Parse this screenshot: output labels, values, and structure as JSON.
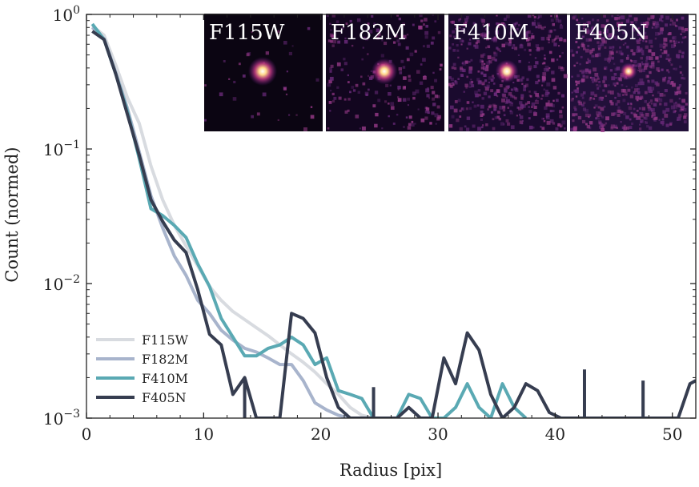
{
  "chart_data": {
    "type": "line",
    "yscale": "log",
    "xlabel": "Radius [pix]",
    "ylabel": "Count (normed)",
    "xlim": [
      0,
      52
    ],
    "ylim": [
      0.001,
      1
    ],
    "x_ticks": [
      0,
      10,
      20,
      30,
      40,
      50
    ],
    "x_tick_labels": [
      "0",
      "10",
      "20",
      "30",
      "40",
      "50"
    ],
    "y_ticks": [
      {
        "value": 1,
        "base": "10",
        "exp": "0"
      },
      {
        "value": 0.1,
        "base": "10",
        "exp": "−1"
      },
      {
        "value": 0.01,
        "base": "10",
        "exp": "−2"
      },
      {
        "value": 0.001,
        "base": "10",
        "exp": "−3"
      }
    ],
    "legend_position": "lower-left",
    "series": [
      {
        "name": "F115W",
        "color": "#d8dbe0",
        "points": [
          [
            0.5,
            0.82
          ],
          [
            1.5,
            0.7
          ],
          [
            2.5,
            0.42
          ],
          [
            3.5,
            0.24
          ],
          [
            4.5,
            0.155
          ],
          [
            5.5,
            0.075
          ],
          [
            6.5,
            0.042
          ],
          [
            7.5,
            0.027
          ],
          [
            8.5,
            0.019
          ],
          [
            9.5,
            0.0135
          ],
          [
            10.5,
            0.0095
          ],
          [
            11.5,
            0.0075
          ],
          [
            12.5,
            0.0062
          ],
          [
            13.5,
            0.0054
          ],
          [
            14.5,
            0.0047
          ],
          [
            15.5,
            0.0041
          ],
          [
            16.5,
            0.0035
          ],
          [
            17.5,
            0.003
          ],
          [
            18.5,
            0.0026
          ],
          [
            19.5,
            0.0022
          ],
          [
            20.5,
            0.0018
          ],
          [
            21.5,
            0.0015
          ],
          [
            22.5,
            0.0012
          ],
          [
            23.5,
            0.00105
          ],
          [
            24.5,
            0.001
          ]
        ]
      },
      {
        "name": "F182M",
        "color": "#a8b4cc",
        "points": [
          [
            0.5,
            0.8
          ],
          [
            1.5,
            0.66
          ],
          [
            2.5,
            0.37
          ],
          [
            3.5,
            0.2
          ],
          [
            4.5,
            0.095
          ],
          [
            5.5,
            0.045
          ],
          [
            6.5,
            0.026
          ],
          [
            7.5,
            0.016
          ],
          [
            8.5,
            0.0115
          ],
          [
            9.5,
            0.0075
          ],
          [
            10.5,
            0.006
          ],
          [
            11.5,
            0.0045
          ],
          [
            12.5,
            0.0038
          ],
          [
            13.5,
            0.0033
          ],
          [
            14.5,
            0.0031
          ],
          [
            15.5,
            0.0028
          ],
          [
            16.5,
            0.0025
          ],
          [
            17.5,
            0.0025
          ],
          [
            18.5,
            0.0019
          ],
          [
            19.5,
            0.0013
          ],
          [
            20.5,
            0.00115
          ],
          [
            21.5,
            0.00105
          ],
          [
            22.5,
            0.001
          ]
        ]
      },
      {
        "name": "F410M",
        "color": "#5aa9b3",
        "points": [
          [
            0.5,
            0.85
          ],
          [
            1.5,
            0.65
          ],
          [
            2.5,
            0.36
          ],
          [
            3.5,
            0.19
          ],
          [
            4.5,
            0.085
          ],
          [
            5.5,
            0.036
          ],
          [
            6.5,
            0.032
          ],
          [
            7.5,
            0.027
          ],
          [
            8.5,
            0.022
          ],
          [
            9.5,
            0.014
          ],
          [
            10.5,
            0.0095
          ],
          [
            11.5,
            0.0055
          ],
          [
            12.5,
            0.004
          ],
          [
            13.5,
            0.0029
          ],
          [
            14.5,
            0.0029
          ],
          [
            15.5,
            0.0033
          ],
          [
            16.5,
            0.0035
          ],
          [
            17.5,
            0.004
          ],
          [
            18.5,
            0.0035
          ],
          [
            19.5,
            0.0025
          ],
          [
            20.5,
            0.0028
          ],
          [
            21.5,
            0.0016
          ],
          [
            22.5,
            0.0015
          ],
          [
            23.5,
            0.0014
          ],
          [
            24.5,
            0.001
          ],
          [
            25.5,
            0.001
          ],
          [
            26.5,
            0.001
          ],
          [
            27.5,
            0.0015
          ],
          [
            28.5,
            0.0014
          ],
          [
            29.5,
            0.001
          ],
          [
            30.5,
            0.001
          ],
          [
            31.5,
            0.0012
          ],
          [
            32.5,
            0.0018
          ],
          [
            33.5,
            0.0012
          ],
          [
            34.5,
            0.001
          ],
          [
            35.5,
            0.0018
          ],
          [
            36.5,
            0.0012
          ],
          [
            37.5,
            0.001
          ]
        ]
      },
      {
        "name": "F405N",
        "color": "#363d50",
        "points": [
          [
            0.5,
            0.75
          ],
          [
            1.5,
            0.65
          ],
          [
            2.5,
            0.36
          ],
          [
            3.5,
            0.18
          ],
          [
            4.5,
            0.09
          ],
          [
            5.5,
            0.042
          ],
          [
            6.5,
            0.029
          ],
          [
            7.5,
            0.021
          ],
          [
            8.5,
            0.017
          ],
          [
            9.5,
            0.009
          ],
          [
            10.5,
            0.0042
          ],
          [
            11.5,
            0.0035
          ],
          [
            12.5,
            0.0015
          ],
          [
            13.5,
            0.002
          ],
          [
            14.5,
            0.001
          ],
          [
            15.5,
            0.001
          ],
          [
            16.5,
            0.001
          ],
          [
            17.5,
            0.006
          ],
          [
            18.5,
            0.0055
          ],
          [
            19.5,
            0.0043
          ],
          [
            20.5,
            0.002
          ],
          [
            21.5,
            0.0012
          ],
          [
            22.5,
            0.001
          ],
          [
            23.5,
            0.001
          ],
          [
            24.5,
            0.001
          ],
          [
            25.5,
            0.001
          ],
          [
            26.5,
            0.001
          ],
          [
            27.5,
            0.0012
          ],
          [
            28.5,
            0.001
          ],
          [
            29.5,
            0.001
          ],
          [
            30.5,
            0.0028
          ],
          [
            31.5,
            0.0018
          ],
          [
            32.5,
            0.0043
          ],
          [
            33.5,
            0.0032
          ],
          [
            34.5,
            0.0015
          ],
          [
            35.5,
            0.001
          ],
          [
            36.5,
            0.0012
          ],
          [
            37.5,
            0.0018
          ],
          [
            38.5,
            0.0016
          ],
          [
            39.5,
            0.0011
          ],
          [
            40.5,
            0.001
          ],
          [
            50.5,
            0.001
          ],
          [
            51.5,
            0.0018
          ],
          [
            52,
            0.0019
          ]
        ]
      }
    ],
    "spikes": [
      {
        "series": "F405N",
        "x": 13.5,
        "top": 0.002
      },
      {
        "series": "F405N",
        "x": 24.5,
        "top": 0.0017
      },
      {
        "series": "F405N",
        "x": 42.5,
        "top": 0.0023
      },
      {
        "series": "F405N",
        "x": 47.5,
        "top": 0.0019
      }
    ],
    "insets": [
      {
        "label": "F115W",
        "background": "#0b0512",
        "star_color": "#ffd98a",
        "noise": 0.05,
        "star_size": 1.0
      },
      {
        "label": "F182M",
        "background": "#12061f",
        "star_color": "#ffd98a",
        "noise": 0.3,
        "star_size": 0.9
      },
      {
        "label": "F410M",
        "background": "#1a0a2e",
        "star_color": "#ffe0a0",
        "noise": 0.7,
        "star_size": 0.8
      },
      {
        "label": "F405N",
        "background": "#22103a",
        "star_color": "#ffc890",
        "noise": 0.9,
        "star_size": 0.6
      }
    ]
  }
}
